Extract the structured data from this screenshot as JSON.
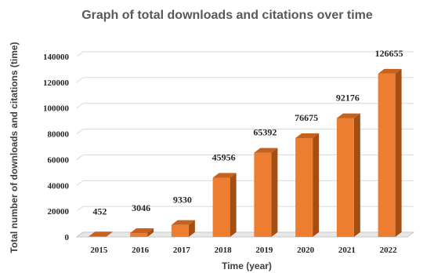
{
  "chart_data": {
    "type": "bar",
    "title": "Graph of total downloads and citations over time",
    "xlabel": "Time (year)",
    "ylabel": "Total number of downloads and citations (time)",
    "categories": [
      "2015",
      "2016",
      "2017",
      "2018",
      "2019",
      "2020",
      "2021",
      "2022"
    ],
    "values": [
      452,
      3046,
      9330,
      45956,
      65392,
      76675,
      92176,
      126655
    ],
    "data_labels": [
      "452",
      "3046",
      "9330",
      "45956",
      "65392",
      "76675",
      "92176",
      "126655"
    ],
    "ylim": [
      0,
      140000
    ],
    "yticks": [
      0,
      20000,
      40000,
      60000,
      80000,
      100000,
      120000,
      140000
    ],
    "ytick_labels": [
      "0",
      "20000",
      "40000",
      "60000",
      "80000",
      "100000",
      "120000",
      "140000"
    ],
    "grid": true,
    "legend": "none",
    "colors": {
      "bar_front": "#ed7d31",
      "bar_side": "#a54e12",
      "bar_top": "#c4621e",
      "gridline": "#d9d9d9",
      "floor": "#bfbfbf"
    }
  }
}
